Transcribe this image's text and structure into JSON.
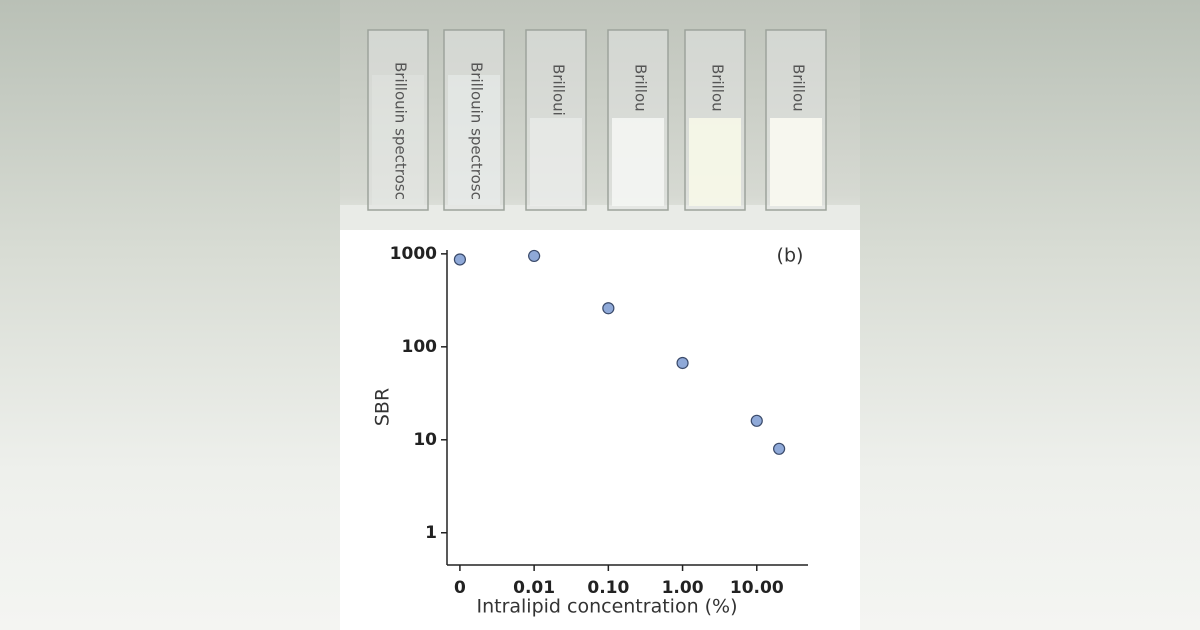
{
  "photo": {
    "labels": [
      "Brillouin spectrosc",
      "Brillouin spectrosc",
      "Brilloui",
      "Brillou",
      "Brillou",
      "Brillou"
    ]
  },
  "chart_data": {
    "type": "scatter",
    "annotation": "(b)",
    "xlabel": "Intralipid concentration (%)",
    "ylabel": "SBR",
    "x": [
      0,
      0.01,
      0.1,
      1,
      10,
      20
    ],
    "values": [
      870,
      950,
      260,
      67,
      16,
      8
    ],
    "color": "#8fa9d8",
    "xscale": "log",
    "yscale": "log",
    "grid": false,
    "xlim": [
      0.00067,
      49
    ],
    "xticks": [
      0,
      0.01,
      {
        "value": 0.1,
        "label": "0.10"
      },
      {
        "value": 1,
        "label": "1.00"
      },
      {
        "value": 10,
        "label": "10.00"
      }
    ],
    "ylim": [
      0.45,
      1100
    ],
    "yticks": [
      1,
      10,
      100,
      1000
    ]
  }
}
